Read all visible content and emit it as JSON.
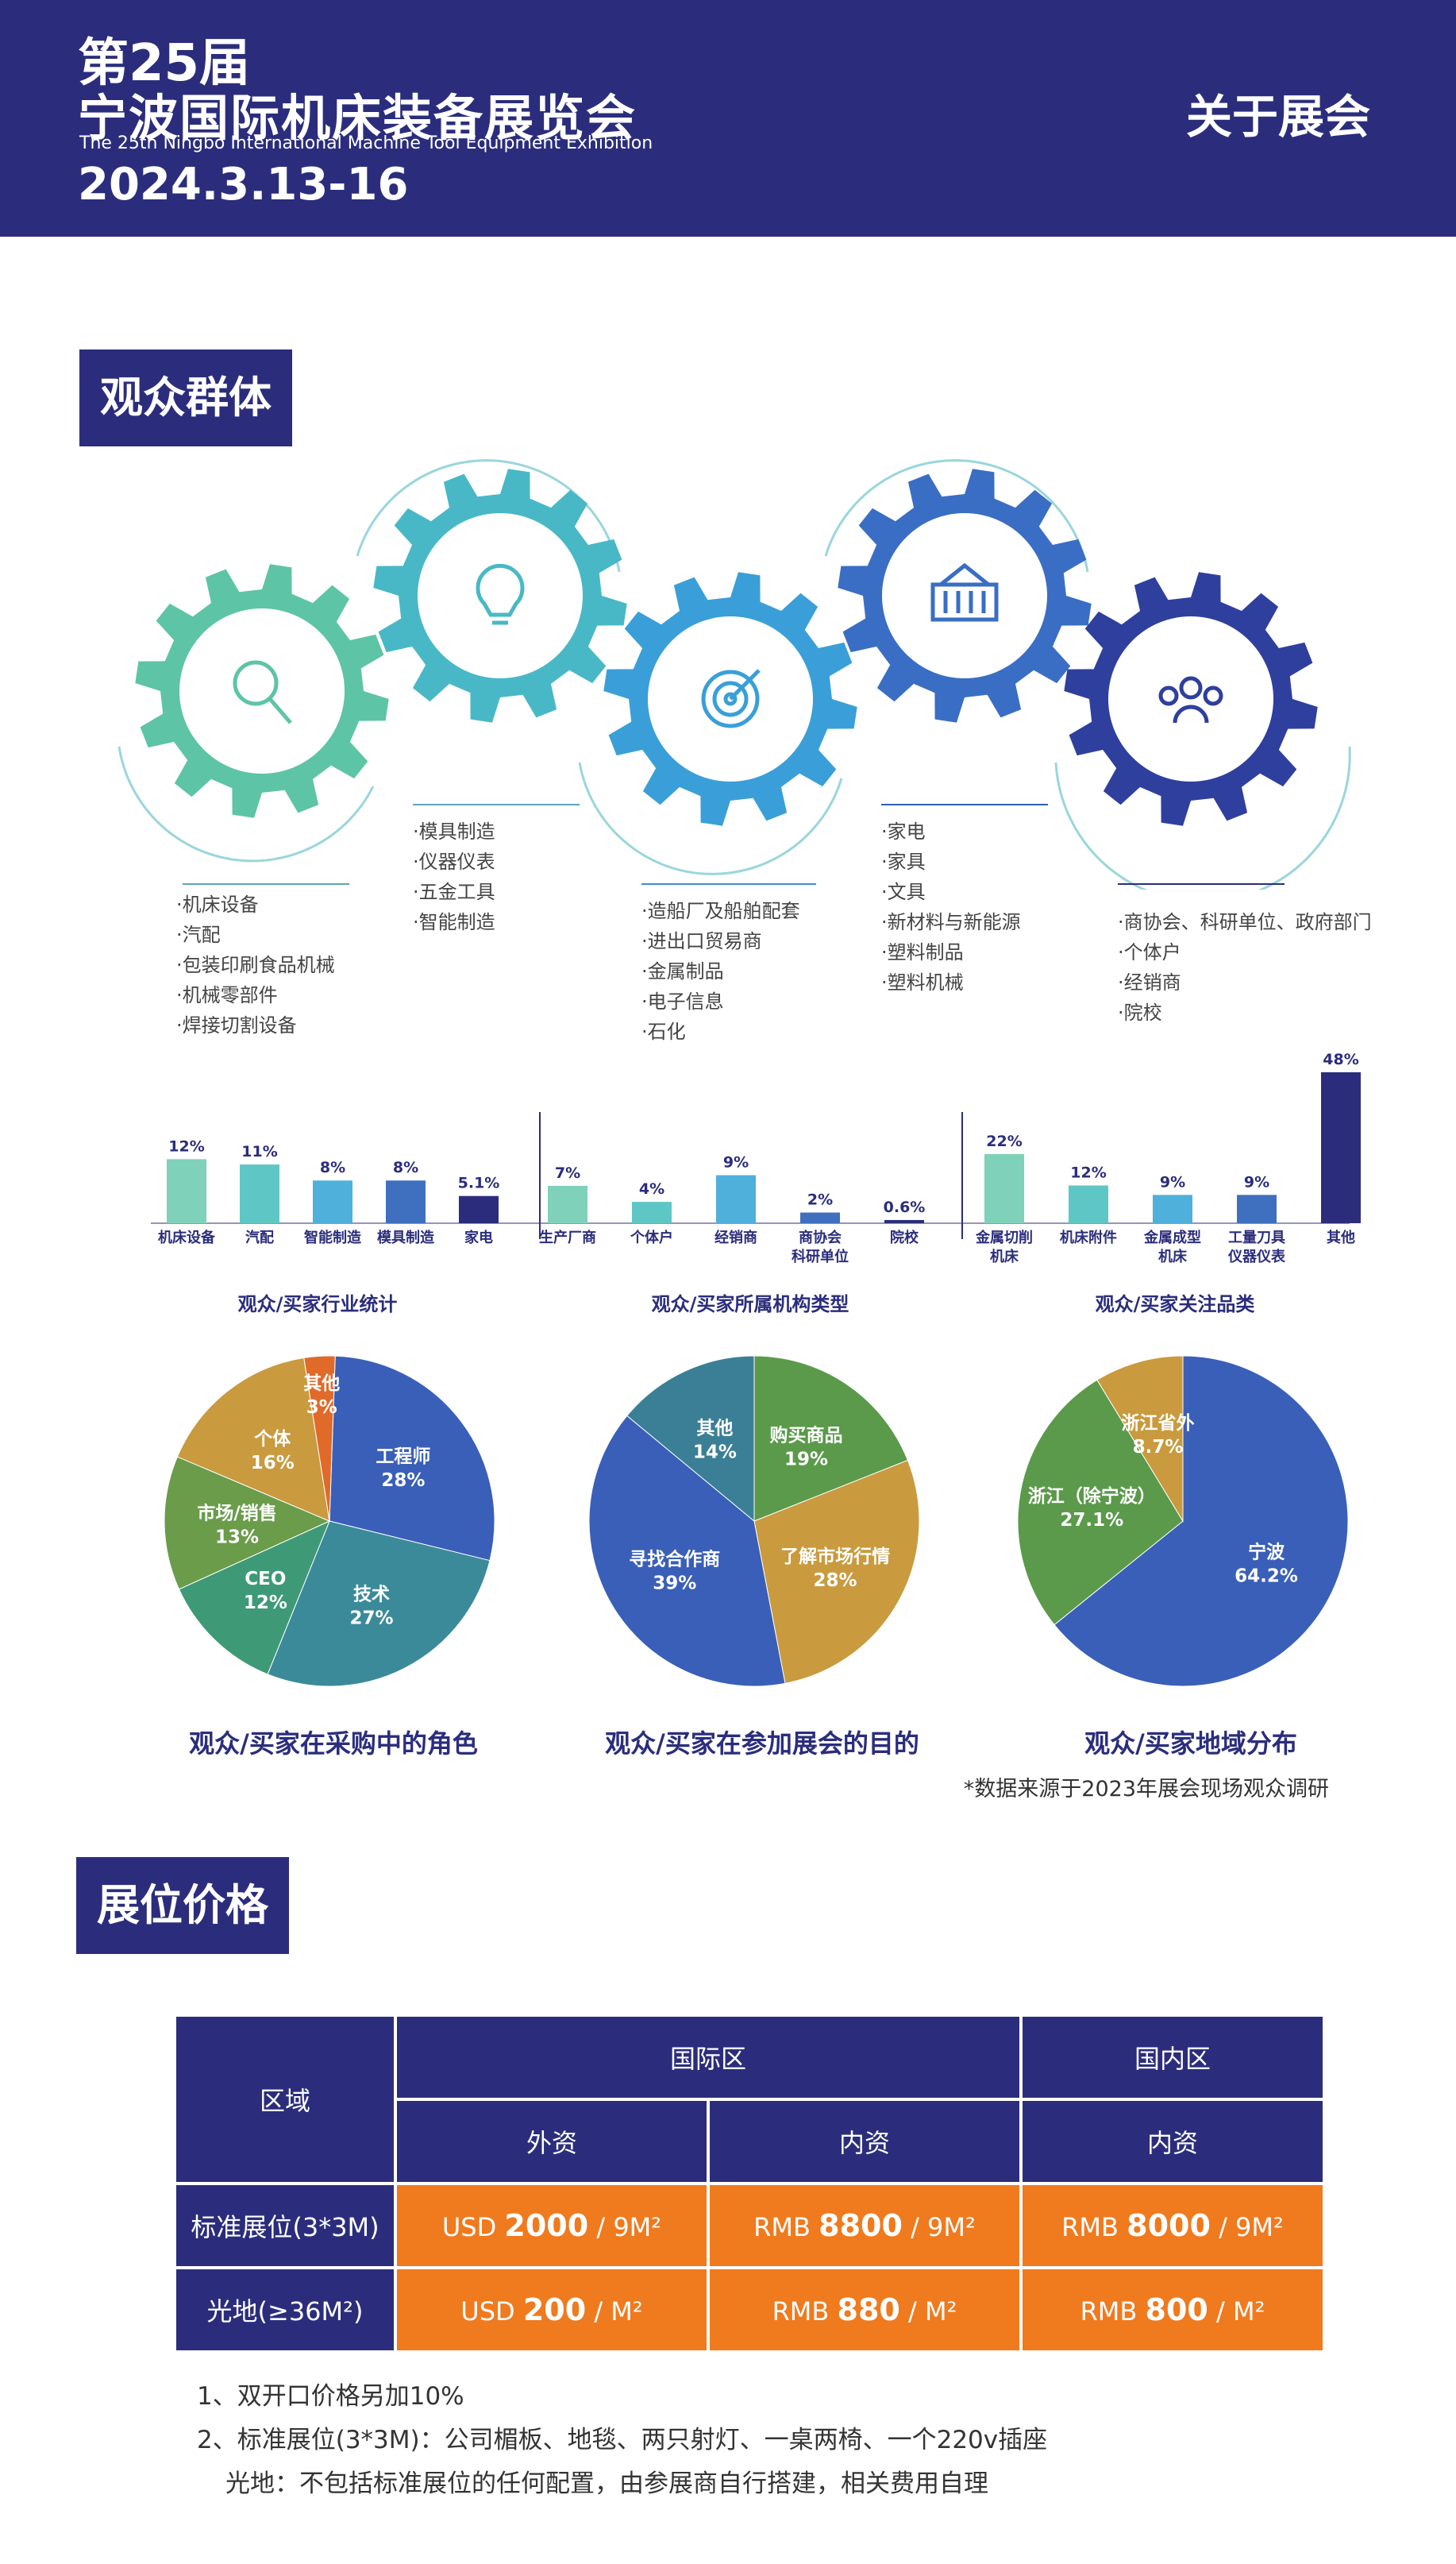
{
  "header": {
    "title_line1": "第25届",
    "title_line2": "宁波国际机床装备展览会",
    "title_en": "The 25th Ningbo International Machine Tool Equipment Exhibition",
    "date": "2024.3.13-16",
    "about": "关于展会"
  },
  "audience": {
    "section_title": "观众群体",
    "gears": [
      {
        "icon": "magnifier-icon",
        "color": "#5ec4a6"
      },
      {
        "icon": "lightbulb-icon",
        "color": "#49b8c6"
      },
      {
        "icon": "target-icon",
        "color": "#3a9fd8"
      },
      {
        "icon": "container-icon",
        "color": "#3a6ec4"
      },
      {
        "icon": "people-icon",
        "color": "#2f3f9e"
      }
    ],
    "lists": [
      [
        "·机床设备",
        "·汽配",
        "·包装印刷食品机械",
        "·机械零部件",
        "·焊接切割设备"
      ],
      [
        "·模具制造",
        "·仪器仪表",
        "·五金工具",
        "·智能制造"
      ],
      [
        "·造船厂及船舶配套",
        "·进出口贸易商",
        "·金属制品",
        "·电子信息",
        "·石化"
      ],
      [
        "·家电",
        "·家具",
        "·文具",
        "·新材料与新能源",
        "·塑料制品",
        "·塑料机械"
      ],
      [
        "·商协会、科研单位、政府部门",
        "·个体户",
        "·经销商",
        "·院校"
      ]
    ],
    "note": "*数据来源于2023年展会现场观众调研"
  },
  "chart_data": [
    {
      "type": "bar",
      "title": "观众/买家行业统计",
      "categories": [
        "机床设备",
        "汽配",
        "智能制造",
        "模具制造",
        "家电"
      ],
      "values": [
        12,
        11,
        8,
        8,
        5.1
      ],
      "labels": [
        "12%",
        "11%",
        "8%",
        "8%",
        "5.1%"
      ],
      "colors": [
        "#7fd1b9",
        "#5fc6c6",
        "#4fb0dc",
        "#3f6fbf",
        "#2b2d7c"
      ]
    },
    {
      "type": "bar",
      "title": "观众/买家所属机构类型",
      "categories": [
        "生产厂商",
        "个体户",
        "经销商",
        "商协会\n科研单位",
        "院校"
      ],
      "values": [
        7,
        4,
        9,
        2,
        0.6
      ],
      "labels": [
        "7%",
        "4%",
        "9%",
        "2%",
        "0.6%"
      ],
      "colors": [
        "#7fd1b9",
        "#5fc6c6",
        "#4fb0dc",
        "#3f6fbf",
        "#2b2d7c"
      ]
    },
    {
      "type": "bar",
      "title": "观众/买家关注品类",
      "categories": [
        "金属切削\n机床",
        "机床附件",
        "金属成型\n机床",
        "工量刀具\n仪器仪表",
        "其他"
      ],
      "values": [
        22,
        12,
        9,
        9,
        48
      ],
      "labels": [
        "22%",
        "12%",
        "9%",
        "9%",
        "48%"
      ],
      "colors": [
        "#7fd1b9",
        "#5fc6c6",
        "#4fb0dc",
        "#3f6fbf",
        "#2b2d7c"
      ]
    },
    {
      "type": "pie",
      "title": "观众/买家在采购中的角色",
      "slices": [
        {
          "label": "工程师",
          "pct": "28%",
          "value": 28,
          "color": "#3a5fb8"
        },
        {
          "label": "技术",
          "pct": "27%",
          "value": 27,
          "color": "#3b8a9a"
        },
        {
          "label": "CEO",
          "pct": "12%",
          "value": 12,
          "color": "#3e9a76"
        },
        {
          "label": "市场/销售",
          "pct": "13%",
          "value": 13,
          "color": "#6a9c4a"
        },
        {
          "label": "个体",
          "pct": "16%",
          "value": 16,
          "color": "#c99a3e"
        },
        {
          "label": "其他",
          "pct": "3%",
          "value": 3,
          "color": "#e06a2a"
        }
      ]
    },
    {
      "type": "pie",
      "title": "观众/买家在参加展会的目的",
      "slices": [
        {
          "label": "购买商品",
          "pct": "19%",
          "value": 19,
          "color": "#5a9a4a"
        },
        {
          "label": "了解市场行情",
          "pct": "28%",
          "value": 28,
          "color": "#c99a3e"
        },
        {
          "label": "寻找合作商",
          "pct": "39%",
          "value": 39,
          "color": "#3a5fb8"
        },
        {
          "label": "其他",
          "pct": "14%",
          "value": 14,
          "color": "#3b7f96"
        }
      ]
    },
    {
      "type": "pie",
      "title": "观众/买家地域分布",
      "slices": [
        {
          "label": "宁波",
          "pct": "64.2%",
          "value": 64.2,
          "color": "#3a5fb8"
        },
        {
          "label": "浙江（除宁波）",
          "pct": "27.1%",
          "value": 27.1,
          "color": "#5a9a4a"
        },
        {
          "label": "浙江省外",
          "pct": "8.7%",
          "value": 8.7,
          "color": "#c99a3e"
        }
      ]
    }
  ],
  "pricing": {
    "section_title": "展位价格",
    "region_label": "区域",
    "intl_label": "国际区",
    "domestic_label": "国内区",
    "foreign_label": "外资",
    "domestic_cap_label": "内资",
    "domestic_cap_label2": "内资",
    "row1_label": "标准展位(3*3M)",
    "row2_label": "光地(≥36M²)",
    "row1": [
      {
        "cur": "USD",
        "amt": "2000",
        "unit": "/ 9M²"
      },
      {
        "cur": "RMB",
        "amt": "8800",
        "unit": "/ 9M²"
      },
      {
        "cur": "RMB",
        "amt": "8000",
        "unit": "/ 9M²"
      }
    ],
    "row2": [
      {
        "cur": "USD",
        "amt": "200",
        "unit": "/ M²"
      },
      {
        "cur": "RMB",
        "amt": "880",
        "unit": "/ M²"
      },
      {
        "cur": "RMB",
        "amt": "800",
        "unit": "/ M²"
      }
    ],
    "notes": [
      "1、双开口价格另加10%",
      "2、标准展位(3*3M)：公司楣板、地毯、两只射灯、一桌两椅、一个220v插座",
      "光地：不包括标准展位的任何配置，由参展商自行搭建，相关费用自理"
    ]
  }
}
